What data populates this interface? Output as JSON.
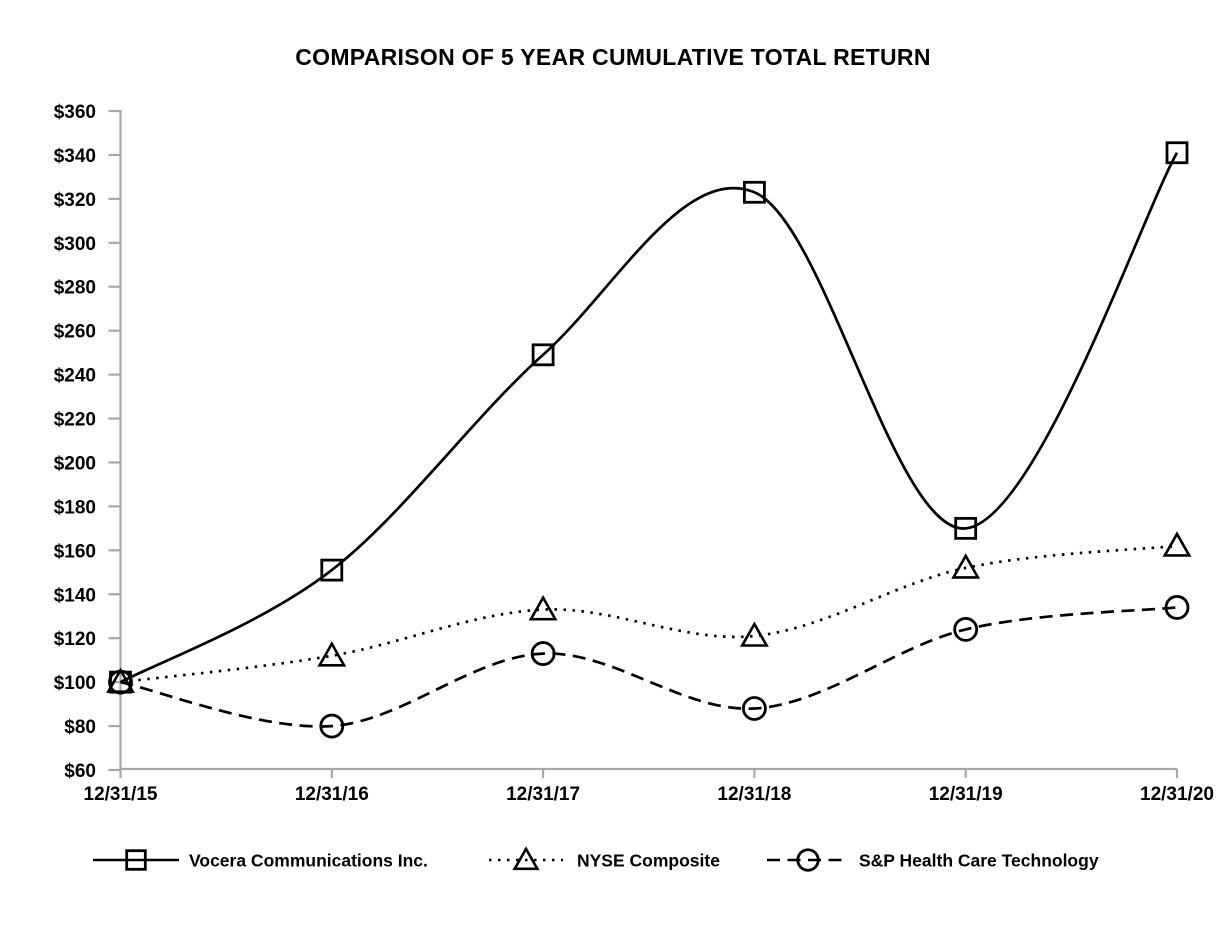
{
  "chart_data": {
    "type": "line",
    "title": "COMPARISON OF 5 YEAR CUMULATIVE TOTAL RETURN",
    "x": [
      "12/31/15",
      "12/31/16",
      "12/31/17",
      "12/31/18",
      "12/31/19",
      "12/31/20"
    ],
    "series": [
      {
        "name": "Vocera Communications Inc.",
        "values": [
          100,
          151,
          249,
          323,
          170,
          341
        ],
        "line_style": "solid",
        "marker": "square"
      },
      {
        "name": "NYSE Composite",
        "values": [
          100,
          112,
          133,
          121,
          152,
          162
        ],
        "line_style": "dotted",
        "marker": "triangle"
      },
      {
        "name": "S&P Health Care Technology",
        "values": [
          100,
          80,
          113,
          88,
          124,
          134
        ],
        "line_style": "dashed",
        "marker": "circle"
      }
    ],
    "ylim": [
      60,
      360
    ],
    "y_tick_step": 20,
    "y_tick_prefix": "$",
    "y_tick_labels": [
      "$60",
      "$80",
      "$100",
      "$120",
      "$140",
      "$160",
      "$180",
      "$200",
      "$220",
      "$240",
      "$260",
      "$280",
      "$300",
      "$320",
      "$340",
      "$360"
    ],
    "xlabel": "",
    "ylabel": "",
    "grid": false,
    "curve": "smoothed",
    "legend_position": "bottom",
    "colors": {
      "line": "#000000",
      "text": "#000000",
      "axis": "#a8a8a8",
      "background": "#ffffff"
    }
  }
}
